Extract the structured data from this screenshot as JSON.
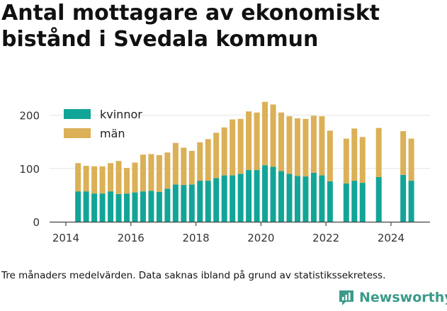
{
  "title": "Antal mottagare av ekonomiskt bistånd i Svedala kommun",
  "caption": "Tre månaders medelvärden. Data saknas ibland på grund av statistikssekretess.",
  "brand": "Newsworthy",
  "colors": {
    "kvinnor": "#12a597",
    "man": "#dbb057",
    "grid": "#e6e6e6",
    "axis": "#444444",
    "brand": "#3c9a8a"
  },
  "chart_data": {
    "type": "bar",
    "stacked": true,
    "x_ticks": [
      2014,
      2016,
      2018,
      2020,
      2022,
      2024
    ],
    "xlim": [
      2013.5,
      2025.2
    ],
    "y_ticks": [
      0,
      100,
      200
    ],
    "ylim": [
      0,
      230
    ],
    "grid": "horizontal",
    "legend_position": "top-left",
    "x": [
      2014.375,
      2014.625,
      2014.875,
      2015.125,
      2015.375,
      2015.625,
      2015.875,
      2016.125,
      2016.375,
      2016.625,
      2016.875,
      2017.125,
      2017.375,
      2017.625,
      2017.875,
      2018.125,
      2018.375,
      2018.625,
      2018.875,
      2019.125,
      2019.375,
      2019.625,
      2019.875,
      2020.125,
      2020.375,
      2020.625,
      2020.875,
      2021.125,
      2021.375,
      2021.625,
      2021.875,
      2022.125,
      2022.375,
      2022.625,
      2022.875,
      2023.125,
      2023.375,
      2023.625,
      2023.875,
      2024.125,
      2024.375,
      2024.625
    ],
    "series": [
      {
        "name": "kvinnor",
        "values": [
          57,
          57,
          53,
          53,
          57,
          52,
          53,
          55,
          57,
          58,
          56,
          62,
          70,
          69,
          70,
          77,
          77,
          82,
          87,
          87,
          90,
          97,
          97,
          106,
          103,
          95,
          90,
          86,
          85,
          92,
          87,
          76,
          null,
          72,
          77,
          73,
          null,
          84,
          null,
          null,
          88,
          77
        ]
      },
      {
        "name": "män",
        "values": [
          53,
          48,
          51,
          51,
          53,
          62,
          48,
          56,
          69,
          69,
          69,
          68,
          78,
          70,
          63,
          72,
          78,
          85,
          90,
          105,
          103,
          110,
          108,
          119,
          117,
          110,
          108,
          108,
          108,
          107,
          111,
          95,
          null,
          84,
          98,
          86,
          null,
          92,
          null,
          null,
          82,
          79
        ]
      }
    ]
  }
}
